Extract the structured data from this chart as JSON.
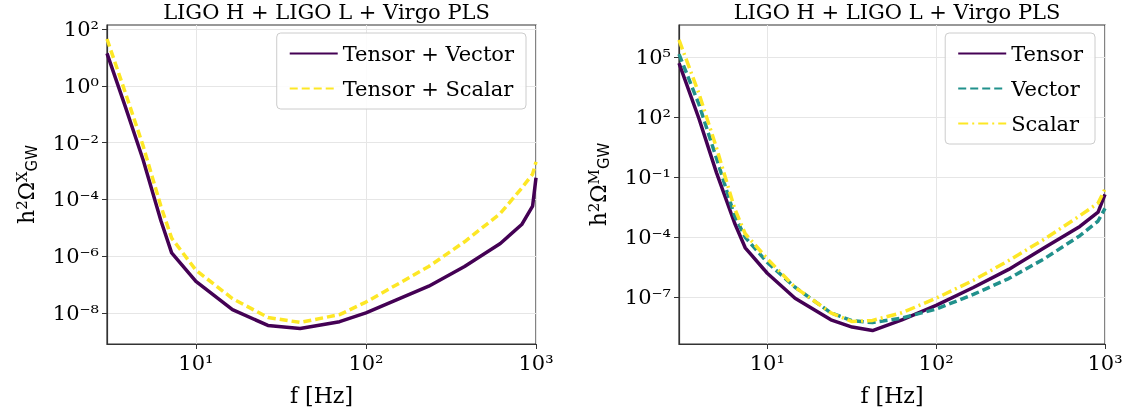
{
  "chart_data": [
    {
      "type": "line",
      "title": "LIGO H + LIGO L + Virgo PLS",
      "xlabel": "f [Hz]",
      "ylabel": "h$^{2}$Ω$^{X}$$_{GW}$",
      "log": "xy",
      "grid": true,
      "legend": "top right",
      "marker": "none",
      "xlim": [
        3,
        1000
      ],
      "xticks": [
        {
          "value": 10,
          "label": "10¹"
        },
        {
          "value": 100,
          "label": "10²"
        },
        {
          "value": 1000,
          "label": "10³"
        }
      ],
      "ylim": [
        8e-10,
        140
      ],
      "yticks": [
        {
          "value": 1e-08,
          "label": "10⁻⁸"
        },
        {
          "value": 1e-06,
          "label": "10⁻⁶"
        },
        {
          "value": 0.0001,
          "label": "10⁻⁴"
        },
        {
          "value": 0.01,
          "label": "10⁻²"
        },
        {
          "value": 1,
          "label": "10⁰"
        },
        {
          "value": 100,
          "label": "10²"
        }
      ],
      "series": [
        {
          "name": "Tensor + Vector",
          "color": "#440154",
          "line_style": "solid",
          "x": [
            3,
            3.84,
            4.89,
            6.22,
            7.2,
            10,
            16.4,
            26.5,
            41,
            70,
            100,
            234,
            380,
            617,
            824,
            955,
            1000
          ],
          "values": [
            14,
            0.19,
            0.0025,
            1.8e-05,
            1.3e-06,
            1.3e-07,
            1.3e-08,
            3.6e-09,
            2.8e-09,
            4.9e-09,
            1e-08,
            8.7e-08,
            4.3e-07,
            2.8e-06,
            1.3e-05,
            5.8e-05,
            0.00058
          ]
        },
        {
          "name": "Tensor + Scalar",
          "color": "#fde725",
          "line_style": "dashed",
          "x": [
            3,
            3.84,
            4.89,
            6.22,
            7.2,
            10,
            16.4,
            26.5,
            41,
            70,
            100,
            234,
            380,
            617,
            824,
            955,
            1000
          ],
          "values": [
            45,
            0.59,
            0.0078,
            5.8e-05,
            4.3e-06,
            3.2e-07,
            3.2e-08,
            6.9e-09,
            4.6e-09,
            8.7e-09,
            2.4e-08,
            4.3e-07,
            3.2e-06,
            3.2e-05,
            0.00025,
            0.00078,
            0.0021
          ]
        }
      ]
    },
    {
      "type": "line",
      "title": "LIGO H + LIGO L + Virgo PLS",
      "xlabel": "f [Hz]",
      "ylabel": "h$^{2}$Ω$^{M}$$_{GW}$",
      "log": "xy",
      "grid": true,
      "legend": "top right",
      "marker": "none",
      "xlim": [
        3,
        1000
      ],
      "xticks": [
        {
          "value": 10,
          "label": "10¹"
        },
        {
          "value": 100,
          "label": "10²"
        },
        {
          "value": 1000,
          "label": "10³"
        }
      ],
      "ylim": [
        4.7e-10,
        4000000.0
      ],
      "yticks": [
        {
          "value": 1e-07,
          "label": "10⁻⁷"
        },
        {
          "value": 0.0001,
          "label": "10⁻⁴"
        },
        {
          "value": 0.1,
          "label": "10⁻¹"
        },
        {
          "value": 100,
          "label": "10²"
        },
        {
          "value": 100000.0,
          "label": "10⁵"
        }
      ],
      "series": [
        {
          "name": "Tensor",
          "color": "#440154",
          "line_style": "solid",
          "x": [
            3,
            3.94,
            5,
            6.4,
            7.4,
            10,
            14.6,
            23.8,
            31.8,
            42,
            62.7,
            100,
            166,
            269,
            437,
            710,
            910,
            1000
          ],
          "values": [
            50000.0,
            83,
            0.17,
            0.00052,
            3e-05,
            1.6e-06,
            9.1e-08,
            7.6e-09,
            3.3e-09,
            2.2e-09,
            7.6e-09,
            4e-08,
            3.1e-07,
            2.5e-06,
            3e-05,
            0.00035,
            0.0018,
            0.014
          ]
        },
        {
          "name": "Vector",
          "color": "#21918c",
          "line_style": "dashed",
          "x": [
            3,
            3.94,
            5,
            6.4,
            7.4,
            10,
            14.6,
            23.8,
            31.8,
            42,
            62.7,
            100,
            166,
            269,
            437,
            710,
            910,
            1000
          ],
          "values": [
            140000.0,
            430,
            0.89,
            0.0012,
            0.0001,
            5.6e-06,
            3.2e-07,
            1.7e-08,
            6.8e-09,
            5.5e-09,
            9.3e-09,
            2.6e-08,
            1.4e-07,
            8.7e-07,
            8.5e-06,
            0.00012,
            0.00065,
            0.0028
          ]
        },
        {
          "name": "Scalar",
          "color": "#fde725",
          "line_style": "dashdot",
          "x": [
            3,
            3.94,
            5,
            6.4,
            7.4,
            10,
            14.6,
            23.8,
            31.8,
            42,
            62.7,
            100,
            166,
            269,
            437,
            710,
            910,
            1000
          ],
          "values": [
            720000.0,
            1500.0,
            3,
            0.0028,
            0.00015,
            8.5e-06,
            3.2e-07,
            1.7e-08,
            6.2e-09,
            7.1e-09,
            1.7e-08,
            9.1e-08,
            7.1e-07,
            6.9e-06,
            8.1e-05,
            0.0012,
            0.0051,
            0.026
          ]
        }
      ]
    }
  ]
}
